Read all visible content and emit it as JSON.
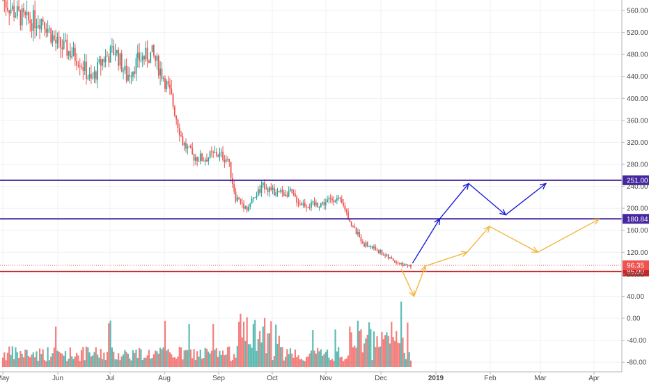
{
  "chart_data": {
    "type": "candlestick",
    "price_axis": {
      "ticks": [
        "560.00",
        "520.00",
        "480.00",
        "440.00",
        "400.00",
        "360.00",
        "320.00",
        "280.00",
        "240.00",
        "200.00",
        "160.00",
        "120.00",
        "80.00",
        "40.00",
        "0.00",
        "-40.00",
        "-80.00"
      ],
      "range": [
        -92,
        579
      ]
    },
    "time_axis": {
      "labels": [
        "May",
        "Jun",
        "Jul",
        "Aug",
        "Sep",
        "Oct",
        "Nov",
        "Dec",
        "2019",
        "Feb",
        "Mar",
        "Apr"
      ],
      "bold_label": "2019"
    },
    "last_price": {
      "value": 96.35,
      "label": "96.35",
      "color": "#ef5350"
    },
    "horizontal_levels": [
      {
        "value": 251.0,
        "label": "251.00",
        "color": "#4527a0"
      },
      {
        "value": 180.84,
        "label": "180.84",
        "color": "#4527a0"
      },
      {
        "value": 85.0,
        "label": "85.00",
        "color": "#c62828"
      }
    ],
    "price_path": [
      {
        "day": 0,
        "price": 580
      },
      {
        "day": 8,
        "price": 555
      },
      {
        "day": 15,
        "price": 540
      },
      {
        "day": 25,
        "price": 545
      },
      {
        "day": 33,
        "price": 500
      },
      {
        "day": 40,
        "price": 488
      },
      {
        "day": 48,
        "price": 470
      },
      {
        "day": 55,
        "price": 430
      },
      {
        "day": 62,
        "price": 470
      },
      {
        "day": 70,
        "price": 488
      },
      {
        "day": 77,
        "price": 440
      },
      {
        "day": 85,
        "price": 472
      },
      {
        "day": 93,
        "price": 480
      },
      {
        "day": 100,
        "price": 440
      },
      {
        "day": 105,
        "price": 400
      },
      {
        "day": 112,
        "price": 320
      },
      {
        "day": 118,
        "price": 295
      },
      {
        "day": 125,
        "price": 290
      },
      {
        "day": 133,
        "price": 300
      },
      {
        "day": 140,
        "price": 290
      },
      {
        "day": 145,
        "price": 220
      },
      {
        "day": 152,
        "price": 200
      },
      {
        "day": 158,
        "price": 225
      },
      {
        "day": 163,
        "price": 243
      },
      {
        "day": 170,
        "price": 225
      },
      {
        "day": 178,
        "price": 230
      },
      {
        "day": 185,
        "price": 210
      },
      {
        "day": 192,
        "price": 205
      },
      {
        "day": 200,
        "price": 210
      },
      {
        "day": 207,
        "price": 220
      },
      {
        "day": 213,
        "price": 200
      },
      {
        "day": 218,
        "price": 165
      },
      {
        "day": 225,
        "price": 135
      },
      {
        "day": 233,
        "price": 125
      },
      {
        "day": 240,
        "price": 110
      },
      {
        "day": 248,
        "price": 98
      },
      {
        "day": 254,
        "price": 96
      }
    ],
    "volume_axis_ticks_note": "volume shown on the same price scale below",
    "projections": [
      {
        "name": "",
        "color": "#1a1ad9",
        "points": [
          {
            "day": 255,
            "price": 100
          },
          {
            "day": 272,
            "price": 181
          },
          {
            "day": 290,
            "price": 245
          },
          {
            "day": 313,
            "price": 188
          },
          {
            "day": 338,
            "price": 245
          }
        ]
      },
      {
        "name": "",
        "color": "#f4b63f",
        "points": [
          {
            "day": 248,
            "price": 90
          },
          {
            "day": 256,
            "price": 40
          },
          {
            "day": 263,
            "price": 95
          },
          {
            "day": 289,
            "price": 120
          },
          {
            "day": 303,
            "price": 167
          },
          {
            "day": 333,
            "price": 120
          },
          {
            "day": 371,
            "price": 180
          }
        ]
      }
    ],
    "colors": {
      "up": "#26a69a",
      "down": "#ef5350",
      "grid": "#eef1f5"
    }
  }
}
